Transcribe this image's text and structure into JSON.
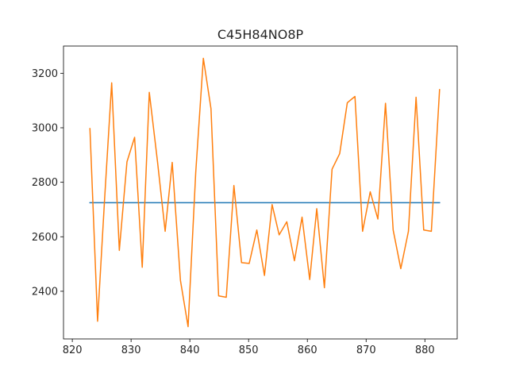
{
  "chart_data": {
    "type": "line",
    "title": "C45H84NO8P",
    "xlabel": "",
    "ylabel": "",
    "xlim": [
      818.5,
      885.5
    ],
    "ylim": [
      2225,
      3300
    ],
    "xticks": [
      820,
      830,
      840,
      850,
      860,
      870,
      880
    ],
    "yticks": [
      2400,
      2600,
      2800,
      3000,
      3200
    ],
    "grid": false,
    "series": [
      {
        "color": "#1f77b4",
        "x": [
          823,
          882.5
        ],
        "y": [
          2725,
          2725
        ]
      },
      {
        "color": "#ff7f0e",
        "x": [
          823,
          824.3,
          825.5,
          826.7,
          828,
          829.3,
          830.6,
          831.9,
          833.1,
          834.5,
          835.8,
          837,
          838.4,
          839.7,
          841,
          842.3,
          843.6,
          844.9,
          846.2,
          847.5,
          848.8,
          850.1,
          851.4,
          852.7,
          854,
          855.2,
          856.5,
          857.8,
          859.1,
          860.4,
          861.6,
          862.9,
          864.2,
          865.5,
          866.8,
          868.1,
          869.4,
          870.7,
          872,
          873.3,
          874.6,
          875.9,
          877.2,
          878.5,
          879.8,
          881.1,
          882.5
        ],
        "y": [
          2997,
          2290,
          2740,
          3165,
          2550,
          2875,
          2965,
          2488,
          3130,
          2875,
          2620,
          2873,
          2440,
          2270,
          2835,
          3255,
          3070,
          2383,
          2378,
          2788,
          2505,
          2502,
          2625,
          2458,
          2718,
          2607,
          2655,
          2512,
          2672,
          2443,
          2703,
          2413,
          2848,
          2905,
          3092,
          3115,
          2620,
          2765,
          2665,
          3090,
          2625,
          2483,
          2620,
          3112,
          2625,
          2620,
          3140
        ]
      }
    ]
  }
}
